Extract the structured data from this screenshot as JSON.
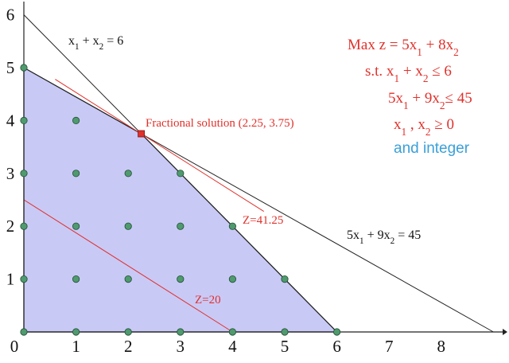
{
  "chart_data": {
    "type": "diagram",
    "x_ticks": [
      "0",
      "1",
      "2",
      "3",
      "4",
      "5",
      "6",
      "7",
      "8"
    ],
    "y_ticks": [
      "1",
      "2",
      "3",
      "4",
      "5",
      "6"
    ],
    "region_color": "#c9c9f6",
    "point_color": "#4f9a6e",
    "accent_red": "#e0312b",
    "accent_blue": "#3aa0d8",
    "feasible_region": [
      [
        0,
        0
      ],
      [
        0,
        5
      ],
      [
        2.25,
        3.75
      ],
      [
        6,
        0
      ]
    ],
    "constraint_lines": [
      {
        "label_parts": [
          "x",
          "1",
          " + x",
          "2",
          " = 6"
        ],
        "from": [
          0,
          6
        ],
        "to": [
          6,
          0
        ]
      },
      {
        "label_parts": [
          "5x",
          "1",
          " + 9x",
          "2",
          " = 45"
        ],
        "from": [
          0,
          5
        ],
        "to": [
          9,
          0
        ]
      }
    ],
    "objective_lines": [
      {
        "label": "Z=20",
        "value": 20,
        "from": [
          0,
          2.5
        ],
        "to": [
          4,
          0
        ]
      },
      {
        "label": "Z=41.25",
        "value": 41.25,
        "from": [
          0.6,
          4.78
        ],
        "to": [
          4.6,
          2.28
        ]
      }
    ],
    "fractional_solution": {
      "x": 2.25,
      "y": 3.75,
      "label": "Fractional solution (2.25, 3.75)"
    },
    "integer_points": [
      [
        0,
        0
      ],
      [
        1,
        0
      ],
      [
        2,
        0
      ],
      [
        3,
        0
      ],
      [
        4,
        0
      ],
      [
        5,
        0
      ],
      [
        6,
        0
      ],
      [
        0,
        1
      ],
      [
        1,
        1
      ],
      [
        2,
        1
      ],
      [
        3,
        1
      ],
      [
        4,
        1
      ],
      [
        5,
        1
      ],
      [
        0,
        2
      ],
      [
        1,
        2
      ],
      [
        2,
        2
      ],
      [
        3,
        2
      ],
      [
        4,
        2
      ],
      [
        0,
        3
      ],
      [
        1,
        3
      ],
      [
        2,
        3
      ],
      [
        3,
        3
      ],
      [
        0,
        4
      ],
      [
        1,
        4
      ],
      [
        0,
        5
      ]
    ]
  },
  "model": {
    "line1": "Max z = 5x1 + 8x2",
    "line2": "s.t. x1 + x2 ≤ 6",
    "line3": "5x1 + 9x2 ≤ 45",
    "line4": "x1 , x2 ≥ 0",
    "line5": "and integer",
    "parts": {
      "line1": [
        "Max z = 5x",
        "1",
        " + 8x",
        "2"
      ],
      "line2": [
        "s.t. x",
        "1",
        " + x",
        "2",
        " ≤ 6"
      ],
      "line3": [
        "5x",
        "1",
        " + 9x",
        "2",
        "≤ 45"
      ],
      "line4": [
        "x",
        "1",
        " , x",
        "2",
        " ≥ 0"
      ]
    }
  }
}
